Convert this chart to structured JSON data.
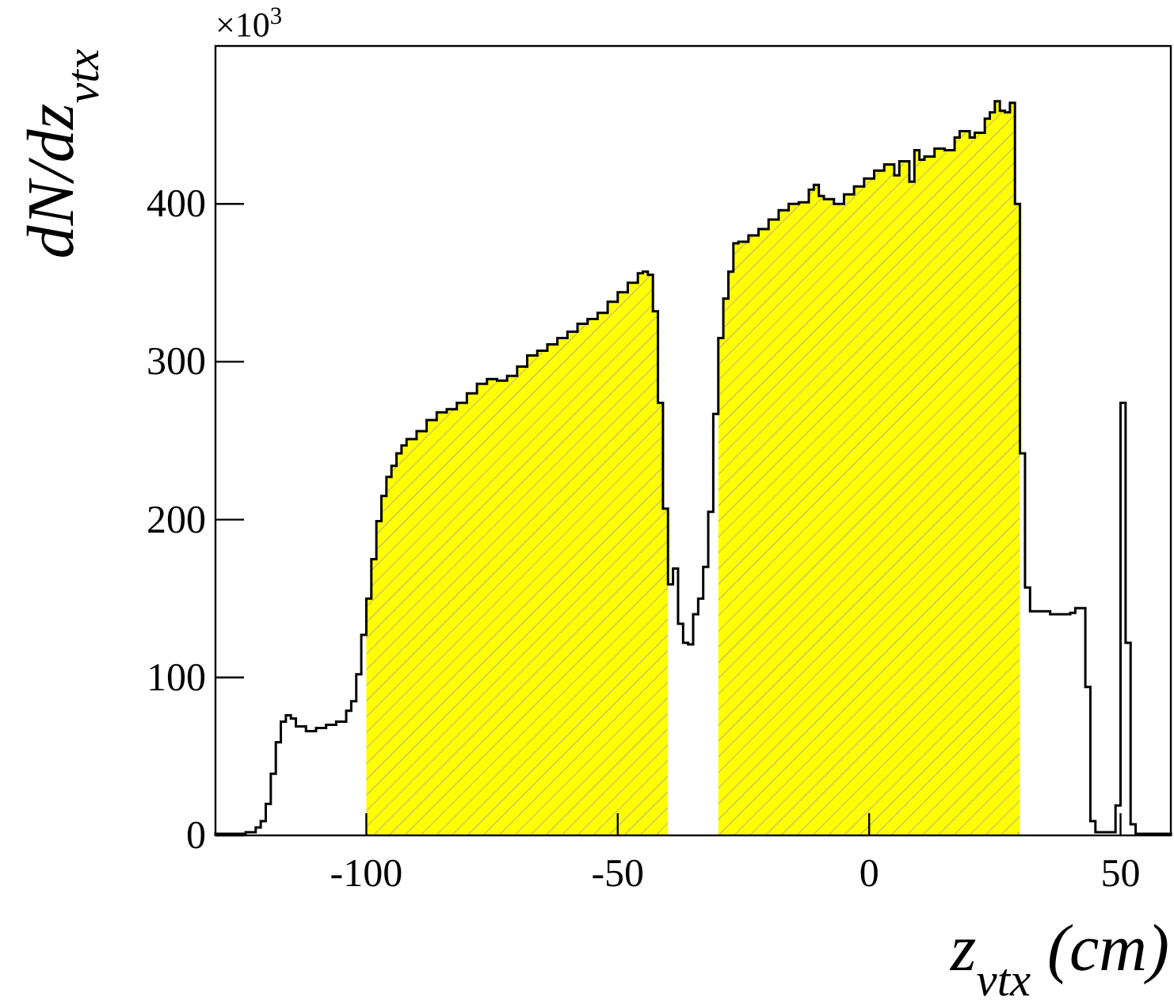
{
  "chart_data": {
    "type": "histogram",
    "xlabel": "z$_{vtx}$ (cm)",
    "ylabel": "dN/dz$_{vtx}$",
    "annotations": [
      "×10$^{3}$"
    ],
    "xlim": [
      -130,
      60
    ],
    "ylim": [
      0,
      500
    ],
    "xticks": [
      -100,
      -50,
      0,
      50
    ],
    "yticks": [
      0,
      100,
      200,
      300,
      400
    ],
    "color": "#000000",
    "bins": [
      -130,
      -124,
      -122,
      -121,
      -120,
      -119,
      -118,
      -117,
      -116,
      -115,
      -114,
      -112,
      -110,
      -108,
      -106,
      -104,
      -103,
      -102,
      -101,
      -100,
      -99,
      -98,
      -97,
      -96,
      -95,
      -94,
      -93,
      -92,
      -90,
      -88,
      -86,
      -84,
      -82,
      -80,
      -78,
      -76,
      -74,
      -72,
      -70,
      -68,
      -66,
      -64,
      -62,
      -60,
      -58,
      -56,
      -54,
      -52,
      -50,
      -48,
      -46,
      -45,
      -44,
      -43,
      -42,
      -41,
      -40,
      -39,
      -38,
      -37,
      -36,
      -35,
      -34,
      -33,
      -32,
      -31,
      -30,
      -29,
      -28,
      -27,
      -26,
      -24,
      -22,
      -20,
      -18,
      -16,
      -14,
      -12,
      -11,
      -10,
      -9,
      -7,
      -5,
      -3,
      -1,
      1,
      3,
      5,
      6,
      7,
      8,
      9,
      10,
      11,
      13,
      15,
      17,
      18,
      20,
      21,
      23,
      24,
      25,
      26,
      27,
      28,
      29,
      30,
      31,
      32,
      36,
      40,
      41,
      43,
      44,
      45,
      49,
      50,
      51,
      52,
      53,
      60
    ],
    "values": [
      1,
      2,
      5,
      9,
      20,
      39,
      59,
      72,
      76,
      74,
      69,
      66,
      68,
      70,
      72,
      79,
      85,
      102,
      127,
      150,
      175,
      199,
      215,
      227,
      234,
      242,
      247,
      251,
      256,
      263,
      268,
      270,
      274,
      280,
      286,
      289,
      288,
      291,
      297,
      304,
      307,
      311,
      315,
      319,
      324,
      327,
      331,
      338,
      344,
      350,
      356,
      357,
      355,
      332,
      274,
      207,
      159,
      169,
      134,
      122,
      121,
      140,
      150,
      170,
      205,
      267,
      315,
      340,
      357,
      375,
      376,
      380,
      384,
      390,
      396,
      400,
      401,
      409,
      412,
      405,
      403,
      400,
      406,
      411,
      416,
      421,
      425,
      418,
      427,
      427,
      414,
      434,
      428,
      430,
      435,
      434,
      442,
      446,
      442,
      445,
      454,
      458,
      465,
      459,
      458,
      464,
      400,
      242,
      157,
      142,
      140,
      141,
      144,
      94,
      9,
      2,
      19,
      274,
      122,
      7,
      1
    ],
    "bands": [
      {
        "axis": "x",
        "from": -100,
        "to": -40,
        "color": "#ffff00"
      },
      {
        "axis": "x",
        "from": -30,
        "to": 30,
        "color": "#ffff00"
      }
    ]
  }
}
